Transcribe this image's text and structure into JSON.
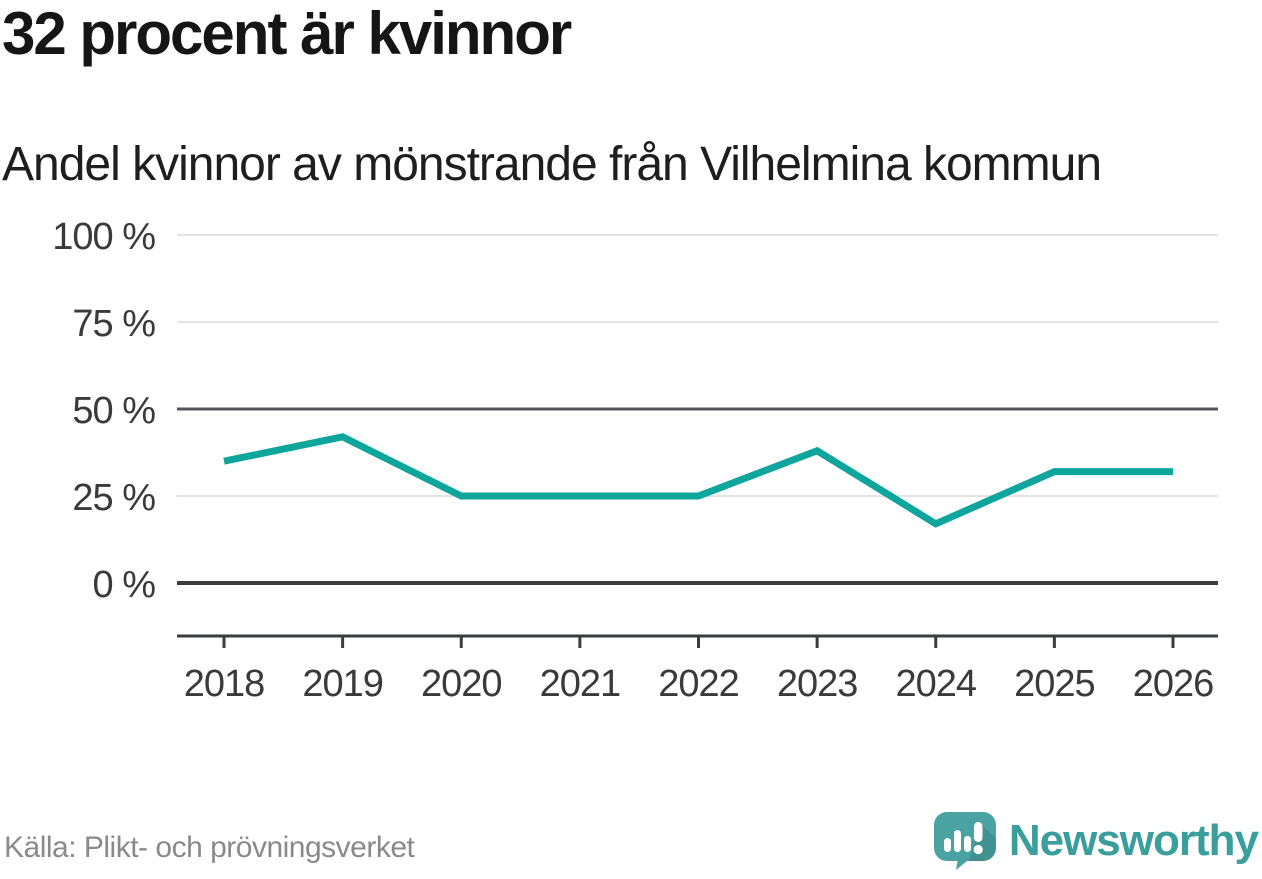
{
  "header": {
    "title": "32 procent är kvinnor",
    "subtitle": "Andel kvinnor av mönstrande från Vilhelmina kommun"
  },
  "chart_data": {
    "type": "line",
    "title": "32 procent är kvinnor",
    "subtitle": "Andel kvinnor av mönstrande från Vilhelmina kommun",
    "x": [
      "2018",
      "2019",
      "2020",
      "2021",
      "2022",
      "2023",
      "2024",
      "2025",
      "2026"
    ],
    "series": [
      {
        "name": "Andel kvinnor av mönstrande",
        "values": [
          35,
          42,
          25,
          25,
          25,
          38,
          17,
          32,
          32
        ]
      }
    ],
    "unit": "%",
    "ylim": [
      0,
      100
    ],
    "yticks": [
      0,
      25,
      50,
      75,
      100
    ],
    "ytick_labels": [
      "0 %",
      "25 %",
      "50 %",
      "75 %",
      "100 %"
    ],
    "grid": "horizontal-only",
    "legend": "none",
    "line_color": "#0ea69c"
  },
  "footer": {
    "source": "Källa: Plikt- och prövningsverket",
    "brand": "Newsworthy"
  },
  "colors": {
    "line": "#0ea69c",
    "grid_light": "#e3e3e3",
    "grid_mid": "#55565b",
    "axis": "#3b3c3e",
    "title_text": "#151515",
    "axis_text": "#3a3a3a",
    "source_text": "#8a8a8a",
    "brand_teal": "#3a9e9c",
    "logo_bubble": "#4aa2a2"
  }
}
